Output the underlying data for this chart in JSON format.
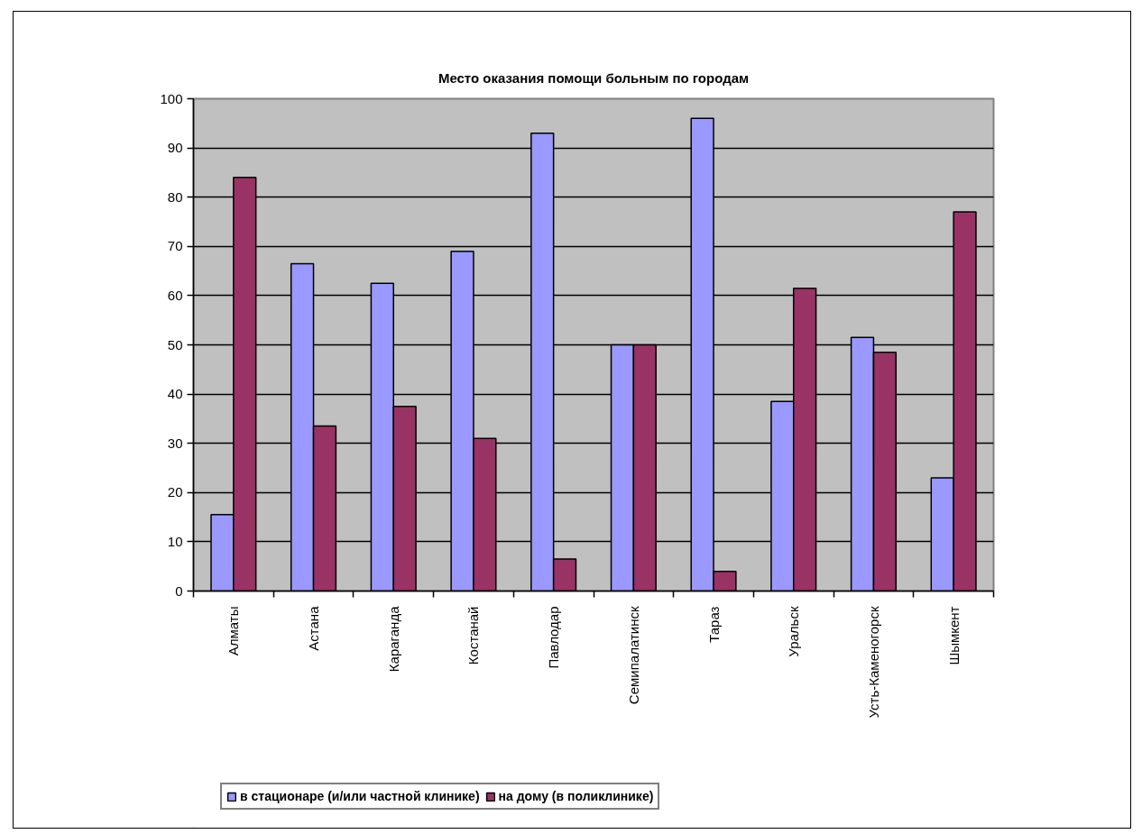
{
  "chart_data": {
    "type": "bar",
    "title": "Место оказания помощи больным по городам",
    "categories": [
      "Алматы",
      "Астана",
      "Караганда",
      "Костанай",
      "Павлодар",
      "Семипалатинск",
      "Тараз",
      "Уральск",
      "Усть-Каменогорск",
      "Шымкент"
    ],
    "series": [
      {
        "name": "в стационаре (и/или частной клинике)",
        "color": "#9999ff",
        "values": [
          15.5,
          66.5,
          62.5,
          69,
          93,
          50,
          96,
          38.5,
          51.5,
          23
        ]
      },
      {
        "name": "на дому (в поликлинике)",
        "color": "#993366",
        "values": [
          84,
          33.5,
          37.5,
          31,
          6.5,
          50,
          4,
          61.5,
          48.5,
          77
        ]
      }
    ],
    "ylim": [
      0,
      100
    ],
    "yticks": [
      0,
      10,
      20,
      30,
      40,
      50,
      60,
      70,
      80,
      90,
      100
    ],
    "grid": "y",
    "legend": "bottom"
  }
}
